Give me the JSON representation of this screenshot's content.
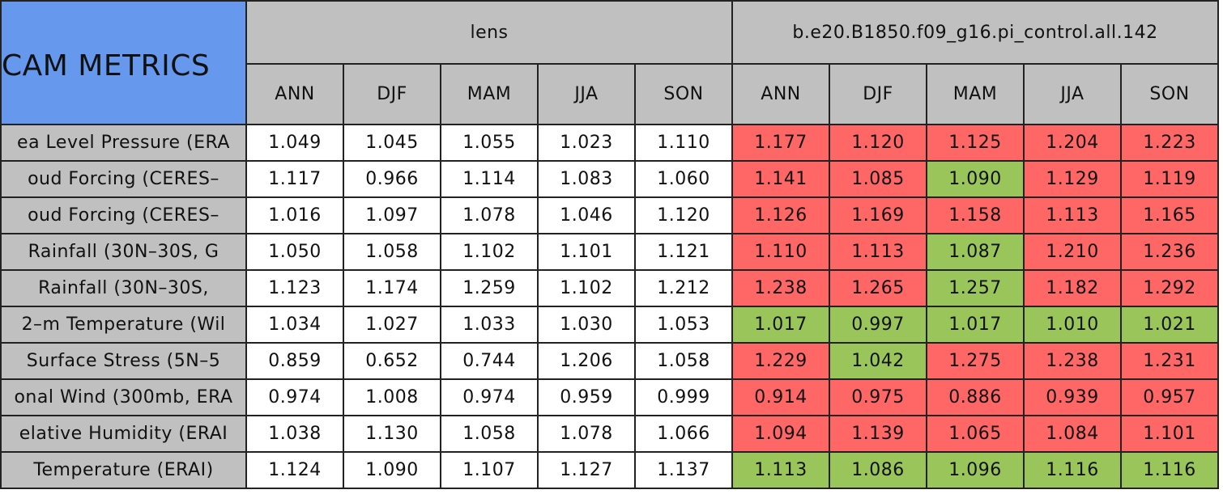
{
  "header": {
    "title": "CAM METRICS",
    "groups": [
      "lens",
      "b.e20.B1850.f09_g16.pi_control.all.142"
    ],
    "seasons": [
      [
        "ANN",
        "DJF",
        "MAM",
        "JJA",
        "SON"
      ],
      [
        "ANN",
        "DJF",
        "MAM",
        "JJA",
        "SON"
      ]
    ],
    "title_color": "#6699ee",
    "header_color": "#c0c0c0"
  },
  "table": {
    "rows": [
      {
        "label": "ea Level Pressure (ERA",
        "values": [
          "1.049",
          "1.045",
          "1.055",
          "1.023",
          "1.110",
          "1.177",
          "1.120",
          "1.125",
          "1.204",
          "1.223"
        ],
        "colors": [
          "#ffffff",
          "#ffffff",
          "#ffffff",
          "#ffffff",
          "#ffffff",
          "#ff6666",
          "#ff6666",
          "#ff6666",
          "#ff6666",
          "#ff6666"
        ]
      },
      {
        "label": "oud Forcing (CERES–",
        "values": [
          "1.117",
          "0.966",
          "1.114",
          "1.083",
          "1.060",
          "1.141",
          "1.085",
          "1.090",
          "1.129",
          "1.119"
        ],
        "colors": [
          "#ffffff",
          "#ffffff",
          "#ffffff",
          "#ffffff",
          "#ffffff",
          "#ff6666",
          "#ff6666",
          "#99c55a",
          "#ff6666",
          "#ff6666"
        ]
      },
      {
        "label": "oud Forcing (CERES–",
        "values": [
          "1.016",
          "1.097",
          "1.078",
          "1.046",
          "1.120",
          "1.126",
          "1.169",
          "1.158",
          "1.113",
          "1.165"
        ],
        "colors": [
          "#ffffff",
          "#ffffff",
          "#ffffff",
          "#ffffff",
          "#ffffff",
          "#ff6666",
          "#ff6666",
          "#ff6666",
          "#ff6666",
          "#ff6666"
        ]
      },
      {
        "label": "Rainfall (30N–30S, G",
        "values": [
          "1.050",
          "1.058",
          "1.102",
          "1.101",
          "1.121",
          "1.110",
          "1.113",
          "1.087",
          "1.210",
          "1.236"
        ],
        "colors": [
          "#ffffff",
          "#ffffff",
          "#ffffff",
          "#ffffff",
          "#ffffff",
          "#ff6666",
          "#ff6666",
          "#99c55a",
          "#ff6666",
          "#ff6666"
        ]
      },
      {
        "label": "Rainfall (30N–30S,",
        "values": [
          "1.123",
          "1.174",
          "1.259",
          "1.102",
          "1.212",
          "1.238",
          "1.265",
          "1.257",
          "1.182",
          "1.292"
        ],
        "colors": [
          "#ffffff",
          "#ffffff",
          "#ffffff",
          "#ffffff",
          "#ffffff",
          "#ff6666",
          "#ff6666",
          "#99c55a",
          "#ff6666",
          "#ff6666"
        ]
      },
      {
        "label": "2–m Temperature (Wil",
        "values": [
          "1.034",
          "1.027",
          "1.033",
          "1.030",
          "1.053",
          "1.017",
          "0.997",
          "1.017",
          "1.010",
          "1.021"
        ],
        "colors": [
          "#ffffff",
          "#ffffff",
          "#ffffff",
          "#ffffff",
          "#ffffff",
          "#99c55a",
          "#99c55a",
          "#99c55a",
          "#99c55a",
          "#99c55a"
        ]
      },
      {
        "label": "Surface Stress (5N–5",
        "values": [
          "0.859",
          "0.652",
          "0.744",
          "1.206",
          "1.058",
          "1.229",
          "1.042",
          "1.275",
          "1.238",
          "1.231"
        ],
        "colors": [
          "#ffffff",
          "#ffffff",
          "#ffffff",
          "#ffffff",
          "#ffffff",
          "#ff6666",
          "#99c55a",
          "#ff6666",
          "#ff6666",
          "#ff6666"
        ]
      },
      {
        "label": "onal Wind (300mb, ERA",
        "values": [
          "0.974",
          "1.008",
          "0.974",
          "0.959",
          "0.999",
          "0.914",
          "0.975",
          "0.886",
          "0.939",
          "0.957"
        ],
        "colors": [
          "#ffffff",
          "#ffffff",
          "#ffffff",
          "#ffffff",
          "#ffffff",
          "#ff6666",
          "#ff6666",
          "#ff6666",
          "#ff6666",
          "#ff6666"
        ]
      },
      {
        "label": "elative Humidity (ERAI",
        "values": [
          "1.038",
          "1.130",
          "1.058",
          "1.078",
          "1.066",
          "1.094",
          "1.139",
          "1.065",
          "1.084",
          "1.101"
        ],
        "colors": [
          "#ffffff",
          "#ffffff",
          "#ffffff",
          "#ffffff",
          "#ffffff",
          "#ff6666",
          "#ff6666",
          "#ff6666",
          "#ff6666",
          "#ff6666"
        ]
      },
      {
        "label": "Temperature (ERAI)",
        "values": [
          "1.124",
          "1.090",
          "1.107",
          "1.127",
          "1.137",
          "1.113",
          "1.086",
          "1.096",
          "1.116",
          "1.116"
        ],
        "colors": [
          "#ffffff",
          "#ffffff",
          "#ffffff",
          "#ffffff",
          "#ffffff",
          "#99c55a",
          "#99c55a",
          "#99c55a",
          "#99c55a",
          "#99c55a"
        ]
      }
    ]
  }
}
